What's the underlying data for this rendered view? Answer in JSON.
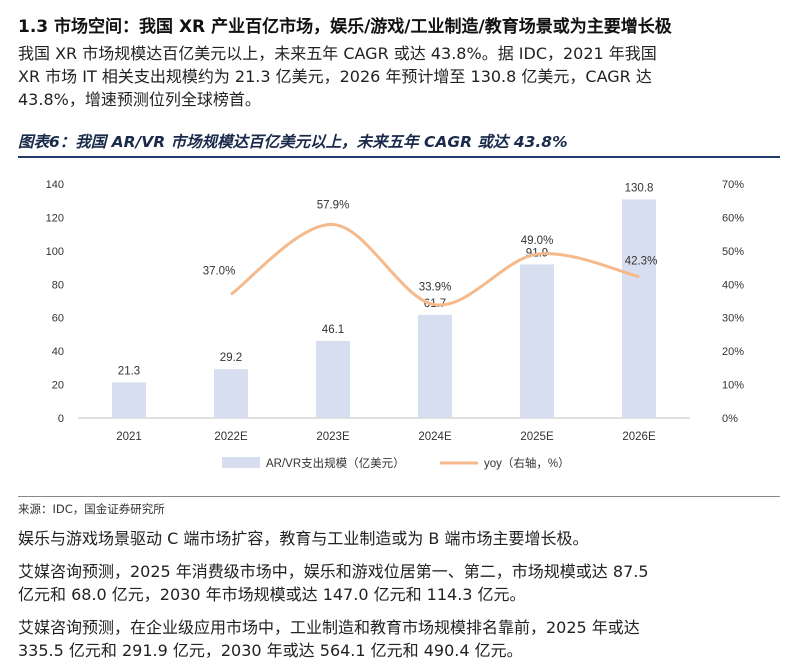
{
  "section": {
    "heading": "1.3 市场空间：我国 XR 产业百亿市场，娱乐/游戏/工业制造/教育场景或为主要增长极"
  },
  "intro": {
    "line1": "我国 XR 市场规模达百亿美元以上，未来五年 CAGR 或达 43.8%。据 IDC，2021 年我国",
    "line2": "XR 市场 IT 相关支出规模约为 21.3 亿美元，2026 年预计增至 130.8 亿美元，CAGR 达",
    "line3": "43.8%，增速预测位列全球榜首。"
  },
  "figure": {
    "title": "图表6：我国 AR/VR 市场规模达百亿美元以上，未来五年 CAGR 或达 43.8%"
  },
  "chart_data": {
    "type": "bar",
    "categories": [
      "2021",
      "2022E",
      "2023E",
      "2024E",
      "2025E",
      "2026E"
    ],
    "series": [
      {
        "name": "AR/VR支出规模（亿美元）",
        "type": "bar",
        "axis": "left",
        "values": [
          21.3,
          29.2,
          46.1,
          61.7,
          91.9,
          130.8
        ],
        "labels": [
          "21.3",
          "29.2",
          "46.1",
          "61.7",
          "91.9",
          "130.8"
        ],
        "color": "#d6def0"
      },
      {
        "name": "yoy（右轴，%）",
        "type": "line",
        "axis": "right",
        "values": [
          null,
          37.0,
          57.9,
          33.9,
          49.0,
          42.3
        ],
        "labels": [
          "",
          "37.0%",
          "57.9%",
          "33.9%",
          "49.0%",
          "42.3%"
        ],
        "color": "#f5b98c"
      }
    ],
    "y_left": {
      "min": 0,
      "max": 140,
      "ticks": [
        "0",
        "20",
        "40",
        "60",
        "80",
        "100",
        "120",
        "140"
      ]
    },
    "y_right": {
      "min": 0,
      "max": 70,
      "ticks": [
        "0%",
        "10%",
        "20%",
        "30%",
        "40%",
        "50%",
        "60%",
        "70%"
      ]
    },
    "legend_position": "bottom",
    "grid": false
  },
  "source": "来源：IDC，国金证券研究所",
  "para2": {
    "line1": "娱乐与游戏场景驱动 C 端市场扩容，教育与工业制造或为 B 端市场主要增长极。"
  },
  "para3": {
    "line1": "艾媒咨询预测，2025 年消费级市场中，娱乐和游戏位居第一、第二，市场规模或达 87.5",
    "line2": "亿元和 68.0 亿元，2030 年市场规模或达 147.0 亿元和 114.3 亿元。"
  },
  "para4": {
    "line1": "艾媒咨询预测，在企业级应用市场中，工业制造和教育市场规模排名靠前，2025 年或达",
    "line2": "335.5 亿元和 291.9 亿元，2030 年或达 564.1 亿元和 490.4 亿元。"
  }
}
